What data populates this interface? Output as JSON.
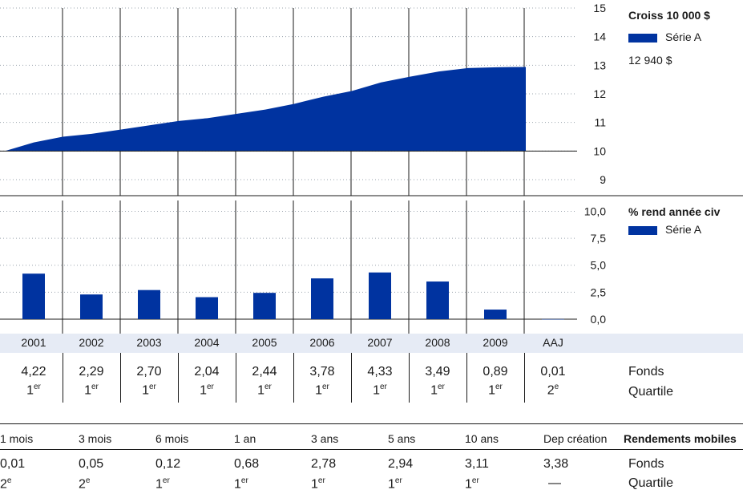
{
  "chart_data": [
    {
      "type": "area",
      "title": "Croiss 10 000 $",
      "series": [
        {
          "name": "Série A",
          "color": "#0033a0"
        }
      ],
      "x": [
        "2001-01",
        "2001-07",
        "2002-01",
        "2002-07",
        "2003-01",
        "2003-07",
        "2004-01",
        "2004-07",
        "2005-01",
        "2005-07",
        "2006-01",
        "2006-07",
        "2007-01",
        "2007-07",
        "2008-01",
        "2008-07",
        "2009-01",
        "2009-07",
        "2010-01"
      ],
      "values": [
        10.0,
        10.3,
        10.5,
        10.6,
        10.75,
        10.9,
        11.05,
        11.15,
        11.3,
        11.45,
        11.65,
        11.9,
        12.1,
        12.4,
        12.6,
        12.78,
        12.9,
        12.93,
        12.94
      ],
      "ylim": [
        9,
        15
      ],
      "yticks": [
        "15",
        "14",
        "13",
        "12",
        "11",
        "10",
        "9"
      ],
      "end_value_label": "12 940 $"
    },
    {
      "type": "bar",
      "title": "% rend année civ",
      "series": [
        {
          "name": "Série A",
          "color": "#0033a0",
          "values": [
            4.22,
            2.29,
            2.7,
            2.04,
            2.44,
            3.78,
            4.33,
            3.49,
            0.89,
            0.01
          ]
        }
      ],
      "categories": [
        "2001",
        "2002",
        "2003",
        "2004",
        "2005",
        "2006",
        "2007",
        "2008",
        "2009",
        "AAJ"
      ],
      "ylim": [
        0,
        11
      ],
      "yticks": [
        "10,0",
        "7,5",
        "5,0",
        "2,5",
        "0,0"
      ]
    }
  ],
  "annual_table": {
    "years": [
      "2001",
      "2002",
      "2003",
      "2004",
      "2005",
      "2006",
      "2007",
      "2008",
      "2009",
      "AAJ"
    ],
    "values": [
      "4,22",
      "2,29",
      "2,70",
      "2,04",
      "2,44",
      "3,78",
      "4,33",
      "3,49",
      "0,89",
      "0,01"
    ],
    "quartiles": [
      [
        "1",
        "er"
      ],
      [
        "1",
        "er"
      ],
      [
        "1",
        "er"
      ],
      [
        "1",
        "er"
      ],
      [
        "1",
        "er"
      ],
      [
        "1",
        "er"
      ],
      [
        "1",
        "er"
      ],
      [
        "1",
        "er"
      ],
      [
        "1",
        "er"
      ],
      [
        "2",
        "e"
      ]
    ],
    "row_label_fund": "Fonds",
    "row_label_quartile": "Quartile"
  },
  "periods_table": {
    "title": "Rendements mobiles",
    "periods": [
      "1 mois",
      "3 mois",
      "6 mois",
      "1 an",
      "3 ans",
      "5 ans",
      "10 ans",
      "Dep création"
    ],
    "values": [
      "0,01",
      "0,05",
      "0,12",
      "0,68",
      "2,78",
      "2,94",
      "3,11",
      "3,38"
    ],
    "quartiles": [
      [
        "2",
        "e"
      ],
      [
        "2",
        "e"
      ],
      [
        "1",
        "er"
      ],
      [
        "1",
        "er"
      ],
      [
        "1",
        "er"
      ],
      [
        "1",
        "er"
      ],
      [
        "1",
        "er"
      ],
      [
        "—",
        ""
      ]
    ],
    "row_label_fund": "Fonds",
    "row_label_quartile": "Quartile"
  }
}
